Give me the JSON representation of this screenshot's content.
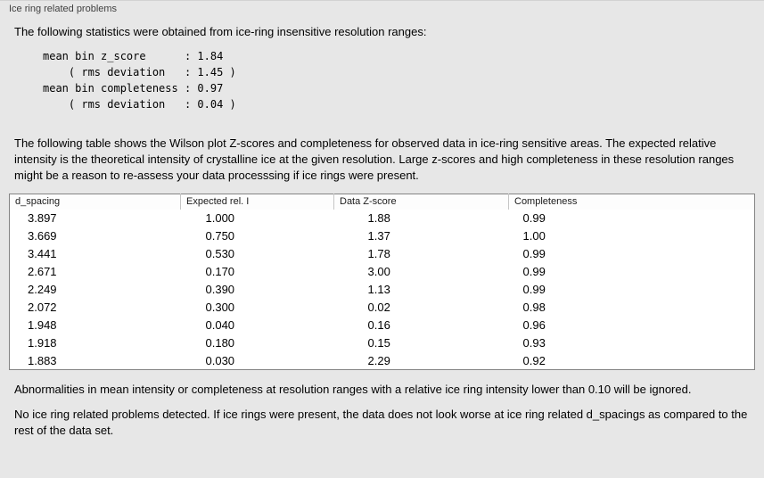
{
  "panel": {
    "title": "Ice ring related problems"
  },
  "stats": {
    "intro": "The following statistics were obtained from ice-ring insensitive resolution ranges:",
    "lines": [
      "mean bin z_score      : 1.84",
      "    ( rms deviation   : 1.45 )",
      "mean bin completeness : 0.97",
      "    ( rms deviation   : 0.04 )"
    ]
  },
  "table_section": {
    "intro": "The following table shows the Wilson plot Z-scores and completeness for observed data in ice-ring sensitive areas. The expected relative intensity is the theoretical intensity of crystalline ice at the given resolution. Large z-scores and high completeness in these resolution ranges might be a reason to re-assess your data processsing if ice rings were present.",
    "columns": [
      "d_spacing",
      "Expected rel. I",
      "Data Z-score",
      "Completeness"
    ],
    "rows": [
      [
        "3.897",
        "1.000",
        "1.88",
        "0.99"
      ],
      [
        "3.669",
        "0.750",
        "1.37",
        "1.00"
      ],
      [
        "3.441",
        "0.530",
        "1.78",
        "0.99"
      ],
      [
        "2.671",
        "0.170",
        "3.00",
        "0.99"
      ],
      [
        "2.249",
        "0.390",
        "1.13",
        "0.99"
      ],
      [
        "2.072",
        "0.300",
        "0.02",
        "0.98"
      ],
      [
        "1.948",
        "0.040",
        "0.16",
        "0.96"
      ],
      [
        "1.918",
        "0.180",
        "0.15",
        "0.93"
      ],
      [
        "1.883",
        "0.030",
        "2.29",
        "0.92"
      ]
    ]
  },
  "notes": {
    "ignore_note": "Abnormalities in mean intensity or completeness at resolution ranges with a relative ice ring intensity lower than 0.10 will be ignored.",
    "conclusion": "No ice ring related problems detected. If ice rings were present, the data does not look worse at ice ring related d_spacings as compared to the rest of the data set."
  },
  "colors": {
    "background": "#e7e7e7",
    "table_background": "#ffffff",
    "table_border": "#848484"
  }
}
